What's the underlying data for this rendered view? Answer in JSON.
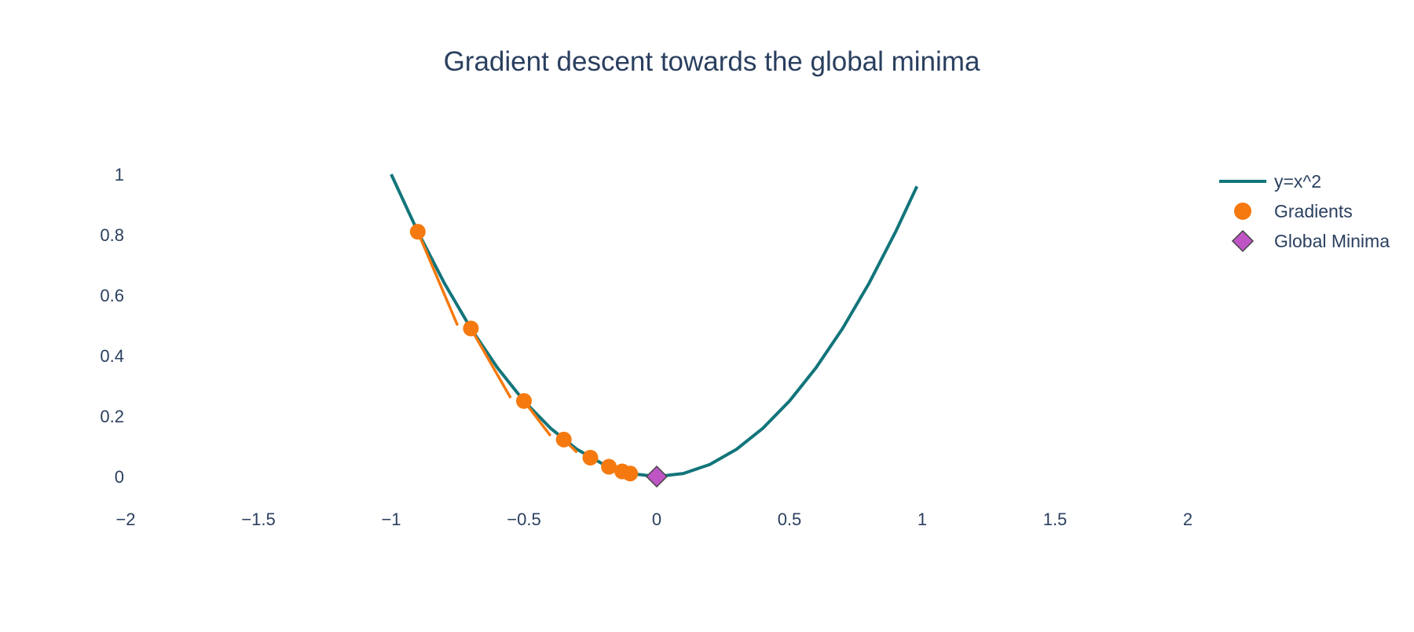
{
  "chart_data": {
    "type": "line",
    "title": "Gradient descent towards the global minima",
    "xlabel": "",
    "ylabel": "",
    "xlim": [
      -2,
      2
    ],
    "ylim": [
      0,
      1
    ],
    "x_ticks": [
      -2,
      -1.5,
      -1,
      -0.5,
      0,
      0.5,
      1,
      1.5,
      2
    ],
    "x_tick_labels": [
      "−2",
      "−1.5",
      "−1",
      "−0.5",
      "0",
      "0.5",
      "1",
      "1.5",
      "2"
    ],
    "y_ticks": [
      0,
      0.2,
      0.4,
      0.6,
      0.8,
      1
    ],
    "y_tick_labels": [
      "0",
      "0.2",
      "0.4",
      "0.6",
      "0.8",
      "1"
    ],
    "grid": false,
    "legend_position": "top-right",
    "series": [
      {
        "name": "y=x^2",
        "kind": "line",
        "color": "#12757a",
        "x": [
          -1,
          -0.9,
          -0.8,
          -0.7,
          -0.6,
          -0.5,
          -0.4,
          -0.3,
          -0.2,
          -0.1,
          0,
          0.1,
          0.2,
          0.3,
          0.4,
          0.5,
          0.6,
          0.7,
          0.8,
          0.9,
          0.98
        ],
        "y": [
          1,
          0.81,
          0.64,
          0.49,
          0.36,
          0.25,
          0.16,
          0.09,
          0.04,
          0.01,
          0,
          0.01,
          0.04,
          0.09,
          0.16,
          0.25,
          0.36,
          0.49,
          0.64,
          0.81,
          0.96
        ]
      },
      {
        "name": "Gradients",
        "kind": "markers",
        "color": "#f5790e",
        "x": [
          -0.9,
          -0.7,
          -0.5,
          -0.35,
          -0.25,
          -0.18,
          -0.13,
          -0.1
        ],
        "y": [
          0.81,
          0.49,
          0.25,
          0.1225,
          0.0625,
          0.0324,
          0.0169,
          0.01
        ]
      },
      {
        "name": "Global Minima",
        "kind": "marker-diamond",
        "color": "#bf55c5",
        "x": [
          0
        ],
        "y": [
          0
        ]
      }
    ],
    "tangent_segments": [
      {
        "x0": -0.9,
        "y0": 0.81,
        "x1": -0.75,
        "y1": 0.5
      },
      {
        "x0": -0.7,
        "y0": 0.49,
        "x1": -0.55,
        "y1": 0.26
      },
      {
        "x0": -0.5,
        "y0": 0.25,
        "x1": -0.4,
        "y1": 0.135
      },
      {
        "x0": -0.35,
        "y0": 0.1225,
        "x1": -0.3,
        "y1": 0.08
      }
    ]
  }
}
